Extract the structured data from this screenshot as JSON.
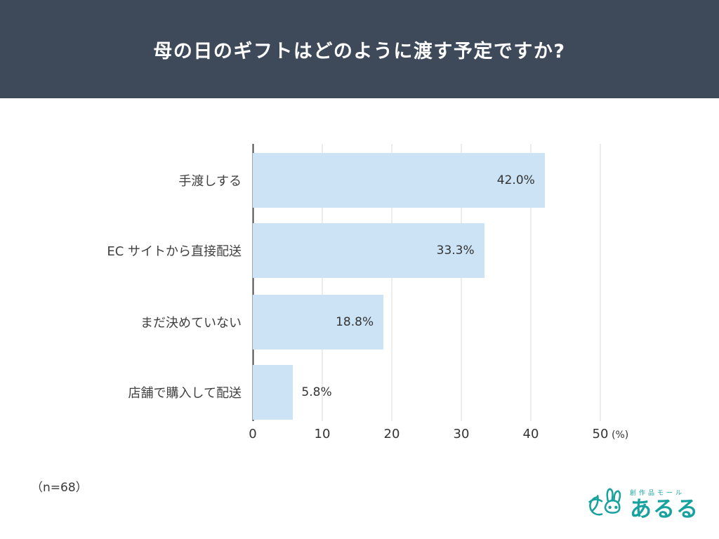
{
  "header": {
    "title": "母の日のギフトはどのように渡す予定ですか?",
    "bg": "#3e4a5a"
  },
  "chart_data": {
    "type": "bar",
    "orientation": "horizontal",
    "title": "母の日のギフトはどのように渡す予定ですか?",
    "categories": [
      "手渡しする",
      "EC サイトから直接配送",
      "まだ決めていない",
      "店舗で購入して配送"
    ],
    "values": [
      42.0,
      33.3,
      18.8,
      5.8
    ],
    "value_labels": [
      "42.0%",
      "33.3%",
      "18.8%",
      "5.8%"
    ],
    "xlim": [
      0,
      50
    ],
    "x_ticks": [
      0,
      10,
      20,
      30,
      40,
      50
    ],
    "x_unit": "(%)",
    "bar_color": "#cce3f5",
    "grid": true,
    "legend": "none"
  },
  "footer": {
    "sample_size": "（n=68）"
  },
  "logo": {
    "subtext": "創作品モール",
    "text": "あるる",
    "color": "#17a29e"
  }
}
